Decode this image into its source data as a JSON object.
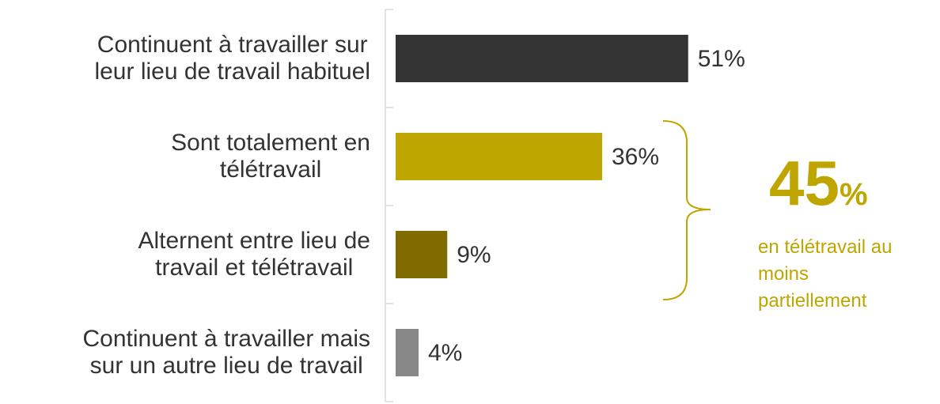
{
  "chart_data": {
    "type": "bar",
    "orientation": "horizontal",
    "categories": [
      "Continuent à travailler sur\nleur lieu de travail habituel",
      "Sont totalement en\ntélétravail",
      "Alternent entre lieu de\ntravail et télétravail",
      "Continuent à travailler mais\nsur un autre lieu de travail"
    ],
    "values": [
      51,
      36,
      9,
      4
    ],
    "value_labels": [
      "51%",
      "36%",
      "9%",
      "4%"
    ],
    "colors": [
      "#333333",
      "#bfa500",
      "#806b00",
      "#888888"
    ],
    "annotation": {
      "number": "45",
      "unit": "%",
      "text": "en télétravail au\nmoins\npartiellement",
      "color": "#bfa500"
    }
  }
}
